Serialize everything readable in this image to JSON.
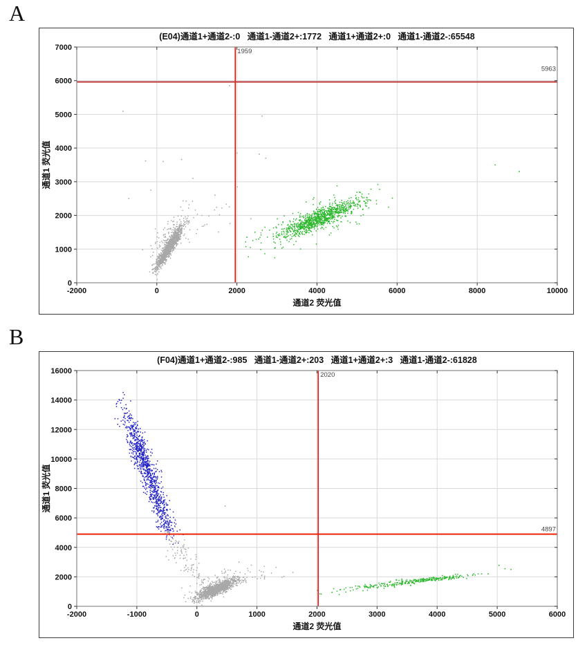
{
  "palette": {
    "gray": "#a8a8a8",
    "green": "#2cb82c",
    "blue": "#2121c8",
    "grid": "#d9d9d9",
    "plot_border": "#8a8a8a",
    "tick": "#333333",
    "text": "#111111"
  },
  "chart_data": [
    {
      "type": "scatter",
      "panel_id": "a",
      "panel_label": "A",
      "title": "(E04)通道1+通道2-:0   通道1-通道2+:1772   通道1+通道2+:0   通道1-通道2-:65548",
      "title_segments": [
        "(E04)通道1+通道2-:0",
        "通道1-通道2+:1772",
        "通道1+通道2+:0",
        "通道1-通道2-:65548"
      ],
      "quadrant_counts": {
        "ch1pos_ch2neg": 0,
        "ch1neg_ch2pos": 1772,
        "ch1pos_ch2pos": 0,
        "ch1neg_ch2neg": 65548
      },
      "xlabel": "通道2  荧光值",
      "ylabel": "通道1  荧光值",
      "xlim": [
        -2000,
        10000
      ],
      "ylim": [
        0,
        7000
      ],
      "xticks": [
        -2000,
        0,
        2000,
        4000,
        6000,
        8000,
        10000
      ],
      "yticks": [
        0,
        1000,
        2000,
        3000,
        4000,
        5000,
        6000,
        7000
      ],
      "grid": true,
      "threshold_x": {
        "value": 1959,
        "label": "1959",
        "color": "#ff0000",
        "width": 1.6
      },
      "threshold_y": {
        "value": 5963,
        "label": "5963",
        "color": "#c03535",
        "width": 2,
        "label_dy": -16
      },
      "clusters": [
        {
          "name": "double-negative-dense",
          "color": "gray",
          "count": 1300,
          "cx": 310,
          "cy": 1050,
          "major": [
            150,
            300
          ],
          "minor": [
            48,
            -26
          ]
        },
        {
          "name": "double-negative-halo",
          "color": "gray",
          "count": 130,
          "cx": 380,
          "cy": 1450,
          "major": [
            240,
            470
          ],
          "minor": [
            150,
            -80
          ]
        },
        {
          "name": "gray-sparse-right",
          "color": "gray",
          "count": 26,
          "cx": 1250,
          "cy": 2000,
          "major": [
            420,
            420
          ],
          "minor": [
            260,
            -160
          ]
        },
        {
          "name": "ch2-positive-dense",
          "color": "green",
          "count": 800,
          "cx": 4050,
          "cy": 1900,
          "major": [
            450,
            250
          ],
          "minor": [
            85,
            -75
          ]
        },
        {
          "name": "ch2-positive-halo",
          "color": "green",
          "count": 260,
          "cx": 3950,
          "cy": 1850,
          "major": [
            680,
            380
          ],
          "minor": [
            190,
            -170
          ]
        }
      ],
      "outliers": [
        {
          "color": "gray",
          "points": [
            [
              -843,
              5092
            ],
            [
              1817,
              5852
            ],
            [
              2630,
              4950
            ],
            [
              2000,
              3850
            ],
            [
              2560,
              3820
            ],
            [
              2720,
              3700
            ],
            [
              -280,
              3620
            ],
            [
              160,
              3600
            ],
            [
              620,
              3660
            ],
            [
              1450,
              2600
            ],
            [
              2350,
              1900
            ],
            [
              2600,
              1480
            ],
            [
              -700,
              2500
            ],
            [
              -150,
              2750
            ],
            [
              900,
              3100
            ]
          ]
        },
        {
          "color": "green",
          "points": [
            [
              8450,
              3500
            ],
            [
              9050,
              3300
            ],
            [
              2250,
              1350
            ],
            [
              2450,
              1500
            ]
          ]
        }
      ]
    },
    {
      "type": "scatter",
      "panel_id": "b",
      "panel_label": "B",
      "title": "(F04)通道1+通道2-:985   通道1-通道2+:203   通道1+通道2+:3   通道1-通道2-:61828",
      "title_segments": [
        "(F04)通道1+通道2-:985",
        "通道1-通道2+:203",
        "通道1+通道2+:3",
        "通道1-通道2-:61828"
      ],
      "quadrant_counts": {
        "ch1pos_ch2neg": 985,
        "ch1neg_ch2pos": 203,
        "ch1pos_ch2pos": 3,
        "ch1neg_ch2neg": 61828
      },
      "xlabel": "通道2  荧光值",
      "ylabel": "通道1  荧光值",
      "xlim": [
        -2000,
        6000
      ],
      "ylim": [
        0,
        16000
      ],
      "xticks": [
        -2000,
        -1000,
        0,
        1000,
        2000,
        3000,
        4000,
        5000,
        6000
      ],
      "yticks": [
        0,
        2000,
        4000,
        6000,
        8000,
        10000,
        12000,
        14000,
        16000
      ],
      "grid": true,
      "threshold_x": {
        "value": 2020,
        "label": "2020",
        "color": "#e01212",
        "width": 1.6
      },
      "threshold_y": {
        "value": 4897,
        "label": "4897",
        "color": "#ee2200",
        "width": 2,
        "label_dy": -4
      },
      "clusters": [
        {
          "name": "ch1-positive-dense",
          "color": "blue",
          "count": 650,
          "cx": -920,
          "cy": 10300,
          "major": [
            150,
            -1400
          ],
          "minor": [
            48,
            330
          ]
        },
        {
          "name": "ch1-positive-tail",
          "color": "blue",
          "count": 280,
          "cx": -660,
          "cy": 7200,
          "major": [
            130,
            -1150
          ],
          "minor": [
            42,
            300
          ]
        },
        {
          "name": "ch1-positive-lower",
          "color": "blue",
          "count": 70,
          "cx": -520,
          "cy": 5600,
          "major": [
            70,
            -550
          ],
          "minor": [
            36,
            250
          ]
        },
        {
          "name": "gray-arc-upper",
          "color": "gray",
          "count": 40,
          "cx": -340,
          "cy": 4100,
          "major": [
            90,
            -600
          ],
          "minor": [
            45,
            200
          ]
        },
        {
          "name": "gray-arc-lower",
          "color": "gray",
          "count": 70,
          "cx": -130,
          "cy": 2700,
          "major": [
            170,
            -950
          ],
          "minor": [
            60,
            220
          ]
        },
        {
          "name": "double-negative-dense",
          "color": "gray",
          "count": 1200,
          "cx": 320,
          "cy": 1150,
          "major": [
            140,
            330
          ],
          "minor": [
            75,
            -45
          ]
        },
        {
          "name": "double-negative-halo",
          "color": "gray",
          "count": 110,
          "cx": 380,
          "cy": 1500,
          "major": [
            240,
            560
          ],
          "minor": [
            170,
            -90
          ]
        },
        {
          "name": "gray-sparse-right",
          "color": "gray",
          "count": 22,
          "cx": 800,
          "cy": 1900,
          "major": [
            280,
            380
          ],
          "minor": [
            190,
            -140
          ]
        },
        {
          "name": "ch2-positive-line",
          "color": "green",
          "count": 180,
          "cx": 3450,
          "cy": 1600,
          "major": [
            560,
            280
          ],
          "minor": [
            95,
            -55
          ]
        },
        {
          "name": "ch2-positive-dense",
          "color": "green",
          "count": 130,
          "cx": 3950,
          "cy": 1850,
          "major": [
            290,
            140
          ],
          "minor": [
            55,
            -35
          ]
        }
      ],
      "outliers": [
        {
          "color": "gray",
          "points": [
            [
              470,
              6800
            ],
            [
              1600,
              2300
            ],
            [
              700,
              3000
            ]
          ]
        },
        {
          "color": "green",
          "points": [
            [
              5030,
              2780
            ],
            [
              5130,
              2550
            ],
            [
              5230,
              2500
            ],
            [
              4850,
              2200
            ],
            [
              2250,
              950
            ]
          ]
        }
      ]
    }
  ]
}
